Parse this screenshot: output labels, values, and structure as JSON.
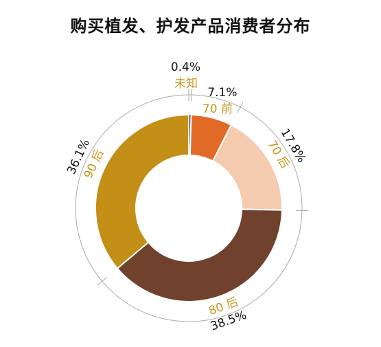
{
  "chart_data": {
    "type": "pie",
    "title": "购买植发、护发产品消费者分布",
    "donut": true,
    "slices": [
      {
        "label": "未知",
        "value": 0.4,
        "value_label": "0.4%",
        "color": "#1a1a1a",
        "label_color": "#c9961a"
      },
      {
        "label": "70 前",
        "value": 7.1,
        "value_label": "7.1%",
        "color": "#e06a26",
        "label_color": "#c9961a"
      },
      {
        "label": "70 后",
        "value": 17.8,
        "value_label": "17.8%",
        "color": "#f5cbb0",
        "label_color": "#c9961a"
      },
      {
        "label": "80 后",
        "value": 38.5,
        "value_label": "38.5%",
        "color": "#70422e",
        "label_color": "#c9961a"
      },
      {
        "label": "90 后",
        "value": 36.1,
        "value_label": "36.1%",
        "color": "#c38f17",
        "label_color": "#c9961a"
      }
    ]
  }
}
